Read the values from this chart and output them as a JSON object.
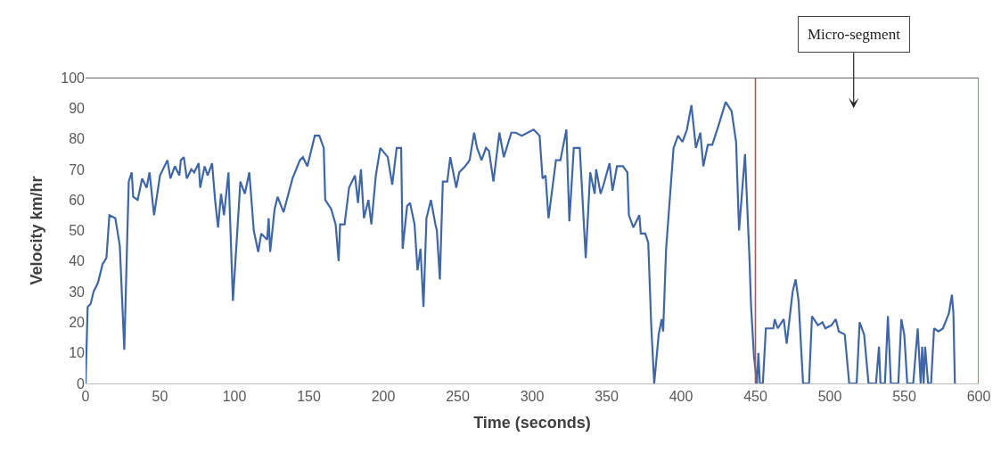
{
  "chart_data": {
    "type": "line",
    "xlabel": "Time (seconds)",
    "ylabel": "Velocity km/hr",
    "series": [
      {
        "color": "#3f66a8",
        "x": [
          0,
          1.4,
          3.4,
          5.4,
          8.4,
          11.4,
          14,
          16,
          20,
          23,
          26,
          29,
          31,
          32,
          35,
          38,
          41,
          43,
          46,
          50,
          55,
          57,
          60,
          63,
          64,
          66,
          68,
          71,
          73,
          76,
          77,
          80,
          82,
          85,
          87,
          89,
          91,
          93,
          96,
          99,
          104,
          107,
          110,
          113,
          116,
          118,
          122,
          123,
          124,
          127,
          129,
          133,
          139,
          144,
          146,
          149,
          154,
          157,
          160,
          161,
          165,
          168,
          170,
          171,
          174,
          177,
          181,
          183,
          185,
          187,
          190,
          192,
          195,
          198,
          203,
          206,
          209,
          212,
          213,
          216,
          218,
          221,
          223,
          225,
          227,
          229,
          232,
          235,
          236,
          238,
          240,
          243,
          245,
          249,
          251,
          255,
          258,
          261,
          263,
          266,
          269,
          271,
          274,
          278,
          281,
          286,
          289,
          293,
          301,
          305,
          307,
          309,
          311,
          316,
          319,
          323,
          325,
          328,
          332,
          336,
          339,
          342,
          343,
          346,
          348,
          352,
          354,
          357,
          361,
          364,
          365,
          368,
          370,
          372,
          373,
          376,
          378,
          380,
          382,
          385,
          387,
          388,
          390,
          395,
          398,
          401,
          404,
          407,
          410,
          413,
          415,
          418,
          421,
          425,
          430,
          434,
          437,
          439,
          443,
          446,
          447,
          449,
          451,
          452,
          453,
          455,
          457,
          462,
          463,
          465,
          469,
          471,
          475,
          477,
          479,
          482,
          486,
          488,
          492,
          495,
          497,
          501,
          504,
          506,
          510,
          513,
          518,
          520,
          523,
          526,
          531,
          533,
          534,
          537,
          539,
          541,
          546,
          548,
          550,
          552,
          556,
          559,
          561,
          562,
          563,
          564,
          566,
          568,
          570,
          573,
          576,
          580,
          582,
          583,
          584
        ],
        "values": [
          0,
          25,
          26,
          30,
          33,
          39,
          41,
          55,
          54,
          45,
          11,
          66,
          69,
          61,
          60,
          67,
          64,
          69,
          55,
          68,
          73,
          67,
          71,
          68,
          73,
          74,
          67,
          70,
          69,
          72,
          64,
          71,
          68,
          72,
          60,
          51,
          62,
          55,
          69,
          27,
          66,
          62,
          69,
          50,
          43,
          49,
          47,
          54,
          43,
          57,
          61,
          56,
          67,
          73,
          74,
          71,
          81,
          81,
          77,
          60,
          57,
          52,
          40,
          52,
          52,
          64,
          68,
          59,
          70,
          54,
          60,
          52,
          68,
          77,
          74,
          65,
          77,
          77,
          44,
          58,
          59,
          52,
          37,
          44,
          25,
          54,
          60,
          52,
          50,
          34,
          66,
          66,
          74,
          64,
          69,
          71,
          73,
          82,
          77,
          73,
          77,
          76,
          66,
          82,
          74,
          82,
          82,
          81,
          83,
          81,
          67,
          68,
          54,
          73,
          73,
          83,
          53,
          77,
          77,
          41,
          69,
          62,
          70,
          62,
          65,
          72,
          63,
          71,
          71,
          69,
          55,
          51,
          53,
          55,
          49,
          49,
          46,
          19,
          0,
          16,
          21,
          17,
          44,
          77,
          81,
          79,
          83,
          91,
          77,
          82,
          71,
          78,
          78,
          84,
          92,
          89,
          79,
          50,
          75,
          41,
          26,
          9,
          0,
          10,
          0,
          0,
          18,
          18,
          21,
          18,
          21,
          13,
          30,
          34,
          27,
          0,
          0,
          22,
          19,
          20,
          18,
          19,
          21,
          17,
          16,
          0,
          0,
          20,
          16,
          0,
          0,
          12,
          0,
          0,
          22,
          0,
          0,
          21,
          16,
          0,
          0,
          18,
          0,
          12,
          0,
          12,
          0,
          0,
          18,
          17,
          18,
          23,
          29,
          23,
          0
        ]
      }
    ],
    "xlim": [
      0,
      600
    ],
    "xticks": [
      0,
      50,
      100,
      150,
      200,
      250,
      300,
      350,
      400,
      450,
      500,
      550,
      600
    ],
    "ylim": [
      0,
      100
    ],
    "yticks": [
      0,
      10,
      20,
      30,
      40,
      50,
      60,
      70,
      80,
      90,
      100
    ],
    "marker": "none",
    "line_style": "solid",
    "ref_lines": [
      {
        "axis": "y",
        "value": 100,
        "color": "#333333"
      },
      {
        "axis": "x",
        "value": 450,
        "color": "#c0504d"
      },
      {
        "axis": "x",
        "value": 600,
        "color": "#c0504d"
      }
    ],
    "annotations": [
      "Micro-segment"
    ]
  }
}
